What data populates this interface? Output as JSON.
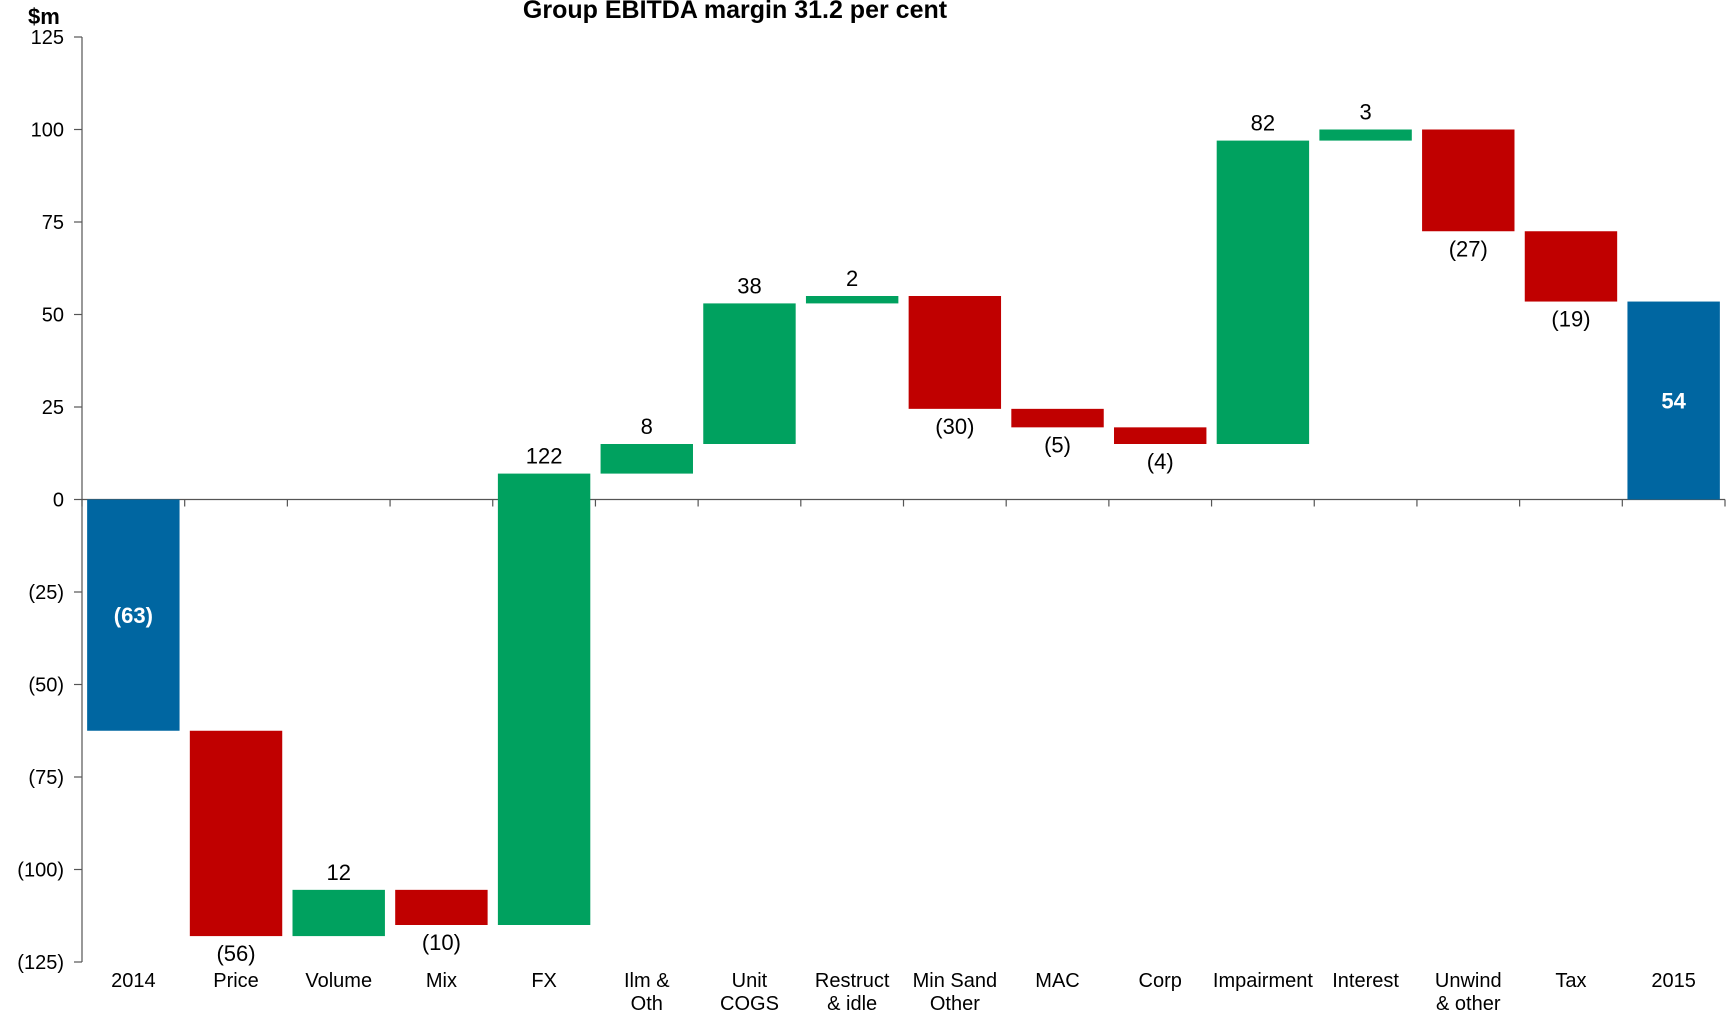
{
  "chart_data": {
    "type": "bar",
    "subtype": "waterfall",
    "title": "Group EBITDA margin 31.2 per cent",
    "unit_label": "$m",
    "ylim": [
      -125,
      125
    ],
    "y_ticks": [
      125,
      100,
      75,
      50,
      25,
      0,
      -25,
      -50,
      -75,
      -100,
      -125
    ],
    "y_tick_labels": [
      "125",
      "100",
      "75",
      "50",
      "25",
      "0",
      "(25)",
      "(50)",
      "(75)",
      "(100)",
      "(125)"
    ],
    "colors": {
      "total": "#0066A1",
      "increase": "#00A15F",
      "decrease": "#C00000"
    },
    "bars": [
      {
        "category": [
          "2014"
        ],
        "value": -63,
        "kind": "total",
        "label": "(63)",
        "start": 0,
        "end": -62.5
      },
      {
        "category": [
          "Price"
        ],
        "value": -56,
        "kind": "decrease",
        "label": "(56)",
        "start": -62.5,
        "end": -118
      },
      {
        "category": [
          "Volume"
        ],
        "value": 12,
        "kind": "increase",
        "label": "12",
        "start": -118,
        "end": -105.5
      },
      {
        "category": [
          "Mix"
        ],
        "value": -10,
        "kind": "decrease",
        "label": "(10)",
        "start": -105.5,
        "end": -115
      },
      {
        "category": [
          "FX"
        ],
        "value": 122,
        "kind": "increase",
        "label": "122",
        "start": -115,
        "end": 7
      },
      {
        "category": [
          "Ilm &",
          "Oth"
        ],
        "value": 8,
        "kind": "increase",
        "label": "8",
        "start": 7,
        "end": 15
      },
      {
        "category": [
          "Unit",
          "COGS"
        ],
        "value": 38,
        "kind": "increase",
        "label": "38",
        "start": 15,
        "end": 53
      },
      {
        "category": [
          "Restruct",
          "& idle"
        ],
        "value": 2,
        "kind": "increase",
        "label": "2",
        "start": 53,
        "end": 55
      },
      {
        "category": [
          "Min Sand",
          "Other"
        ],
        "value": -30,
        "kind": "decrease",
        "label": "(30)",
        "start": 55,
        "end": 24.5
      },
      {
        "category": [
          "MAC"
        ],
        "value": -5,
        "kind": "decrease",
        "label": "(5)",
        "start": 24.5,
        "end": 19.5
      },
      {
        "category": [
          "Corp"
        ],
        "value": -4,
        "kind": "decrease",
        "label": "(4)",
        "start": 19.5,
        "end": 15
      },
      {
        "category": [
          "Impairment"
        ],
        "value": 82,
        "kind": "increase",
        "label": "82",
        "start": 15,
        "end": 97
      },
      {
        "category": [
          "Interest"
        ],
        "value": 3,
        "kind": "increase",
        "label": "3",
        "start": 97,
        "end": 100
      },
      {
        "category": [
          "Unwind",
          "& other"
        ],
        "value": -27,
        "kind": "decrease",
        "label": "(27)",
        "start": 100,
        "end": 72.5
      },
      {
        "category": [
          "Tax"
        ],
        "value": -19,
        "kind": "decrease",
        "label": "(19)",
        "start": 72.5,
        "end": 53.5
      },
      {
        "category": [
          "2015"
        ],
        "value": 54,
        "kind": "total",
        "label": "54",
        "start": 0,
        "end": 53.5
      }
    ]
  }
}
